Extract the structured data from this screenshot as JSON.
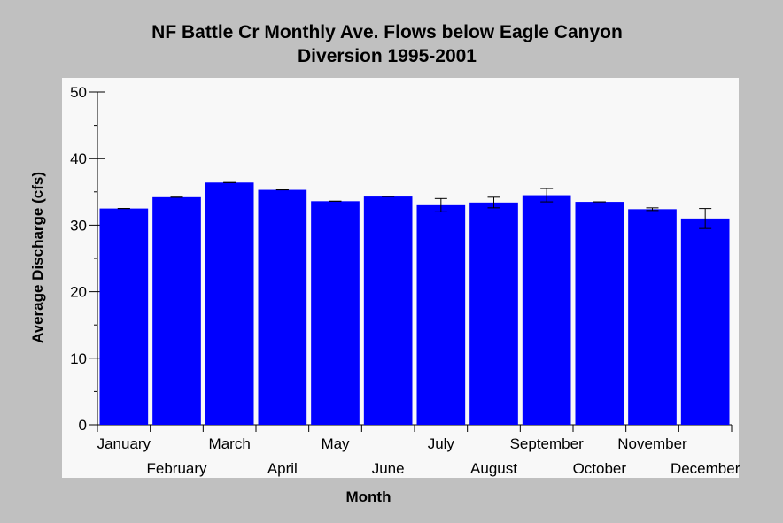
{
  "chart_data": {
    "type": "bar",
    "title_line1": "NF Battle Cr Monthly Ave. Flows below Eagle Canyon",
    "title_line2": "Diversion 1995-2001",
    "xlabel": "Month",
    "ylabel": "Average Discharge (cfs)",
    "ylim": [
      0,
      50
    ],
    "yticks": [
      "0",
      "10",
      "20",
      "30",
      "40",
      "50"
    ],
    "categories": [
      "January",
      "February",
      "March",
      "April",
      "May",
      "June",
      "July",
      "August",
      "September",
      "October",
      "November",
      "December"
    ],
    "values": [
      32.5,
      34.2,
      36.4,
      35.3,
      33.6,
      34.3,
      33.0,
      33.4,
      34.5,
      33.5,
      32.4,
      31.0
    ],
    "error_low": [
      32.5,
      34.2,
      36.4,
      35.3,
      33.6,
      34.3,
      32.0,
      32.6,
      33.5,
      33.5,
      32.2,
      29.5
    ],
    "error_high": [
      32.5,
      34.2,
      36.4,
      35.3,
      33.6,
      34.3,
      34.0,
      34.2,
      35.5,
      33.5,
      32.6,
      32.5
    ],
    "bar_color": "#0000ff",
    "plot_background": "#f8f8f8",
    "page_background": "#c0c0c0",
    "grid": false,
    "legend": "none"
  }
}
